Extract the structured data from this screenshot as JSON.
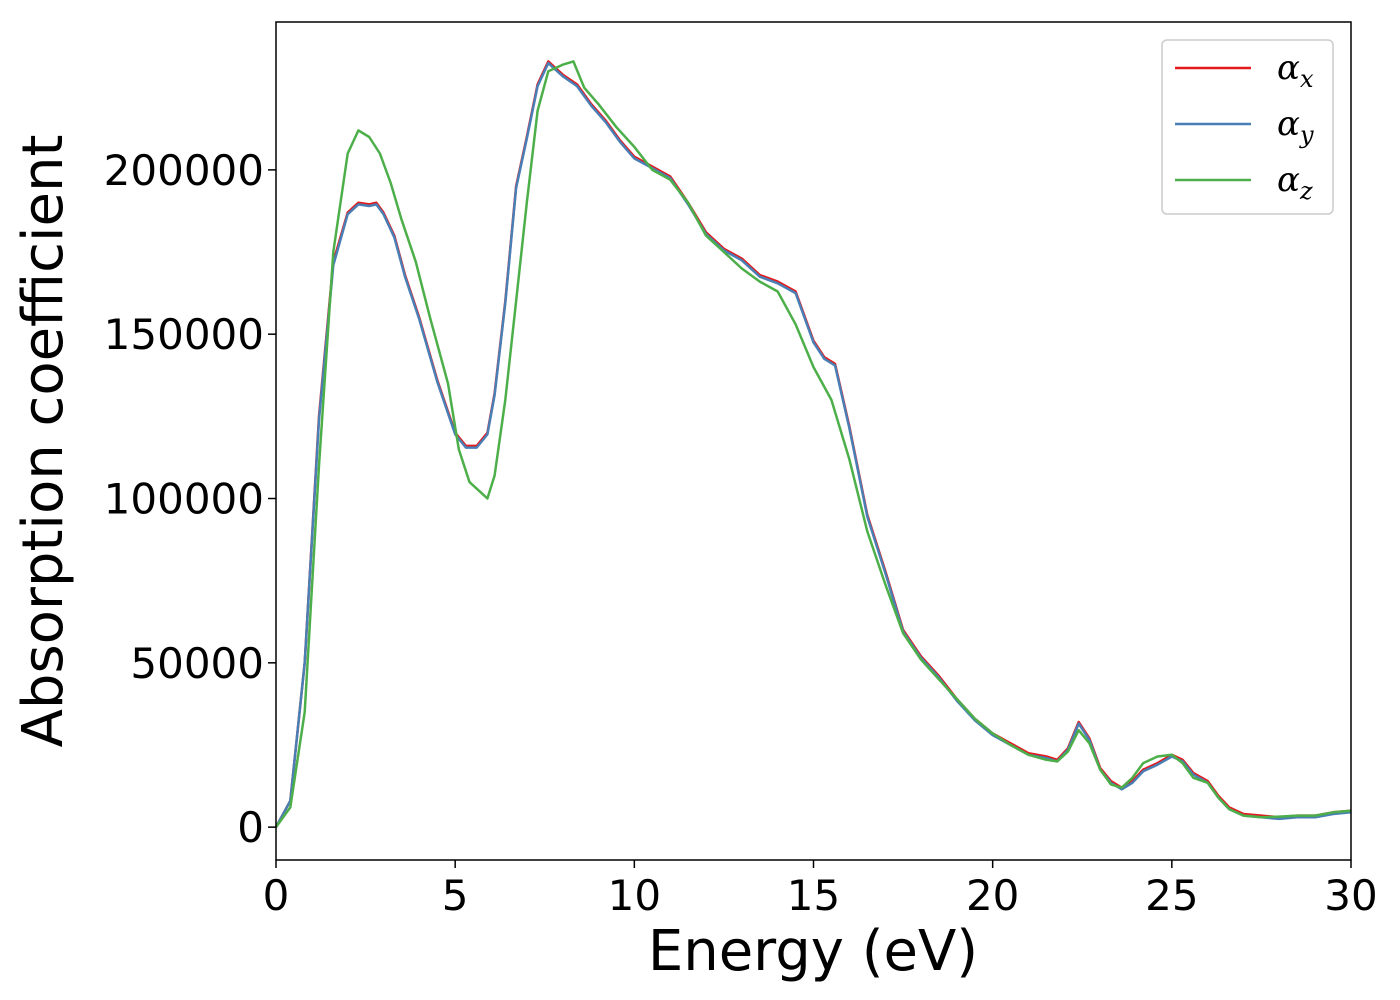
{
  "chart_data": {
    "type": "line",
    "title": "",
    "xlabel": "Energy (eV)",
    "ylabel": "Absorption coefficient",
    "xlim": [
      0,
      30
    ],
    "ylim": [
      -10000,
      245000
    ],
    "xticks": [
      0,
      5,
      10,
      15,
      20,
      25,
      30
    ],
    "yticks": [
      0,
      50000,
      100000,
      150000,
      200000
    ],
    "xtick_labels": [
      "0",
      "5",
      "10",
      "15",
      "20",
      "25",
      "30"
    ],
    "ytick_labels": [
      "0",
      "50000",
      "100000",
      "150000",
      "200000"
    ],
    "grid": false,
    "legend_position": "top-right",
    "series": [
      {
        "name": "α",
        "subscript": "x",
        "color": "#e41a1c",
        "x": [
          0,
          0.4,
          0.8,
          1.2,
          1.6,
          2.0,
          2.3,
          2.6,
          2.8,
          3.0,
          3.3,
          3.6,
          4.0,
          4.5,
          5.0,
          5.3,
          5.6,
          5.9,
          6.1,
          6.4,
          6.7,
          7.0,
          7.3,
          7.6,
          7.8,
          8.0,
          8.4,
          8.8,
          9.2,
          9.6,
          10.0,
          10.5,
          11.0,
          11.5,
          12.0,
          12.5,
          13.0,
          13.5,
          14.0,
          14.5,
          15.0,
          15.3,
          15.6,
          16.0,
          16.5,
          17.0,
          17.5,
          18.0,
          18.5,
          19.0,
          19.5,
          20.0,
          20.5,
          21.0,
          21.5,
          21.8,
          22.1,
          22.4,
          22.7,
          23.0,
          23.3,
          23.6,
          23.9,
          24.2,
          24.6,
          25.0,
          25.3,
          25.6,
          26.0,
          26.3,
          26.6,
          27.0,
          27.5,
          28.0,
          28.5,
          29.0,
          29.5,
          30.0
        ],
        "values": [
          0,
          8000,
          50000,
          125000,
          172000,
          187000,
          190000,
          189500,
          190000,
          187000,
          180000,
          168000,
          155000,
          136000,
          120000,
          116000,
          116000,
          120000,
          132000,
          160000,
          195000,
          210000,
          226000,
          233000,
          231000,
          229000,
          226000,
          220000,
          215000,
          209000,
          204000,
          201000,
          198000,
          190000,
          181000,
          176000,
          173000,
          168000,
          166000,
          163000,
          148000,
          143000,
          141000,
          122000,
          95000,
          78000,
          60000,
          52000,
          46000,
          39000,
          33000,
          28500,
          25500,
          22500,
          21500,
          20500,
          24000,
          32000,
          27000,
          18000,
          14000,
          12000,
          14000,
          17500,
          19500,
          22000,
          20500,
          16500,
          14000,
          9500,
          6000,
          4000,
          3500,
          3000,
          3500,
          3500,
          4500,
          5000
        ]
      },
      {
        "name": "α",
        "subscript": "y",
        "color": "#4a7fb5",
        "x": [
          0,
          0.4,
          0.8,
          1.2,
          1.6,
          2.0,
          2.3,
          2.6,
          2.8,
          3.0,
          3.3,
          3.6,
          4.0,
          4.5,
          5.0,
          5.3,
          5.6,
          5.9,
          6.1,
          6.4,
          6.7,
          7.0,
          7.3,
          7.6,
          7.8,
          8.0,
          8.4,
          8.8,
          9.2,
          9.6,
          10.0,
          10.5,
          11.0,
          11.5,
          12.0,
          12.5,
          13.0,
          13.5,
          14.0,
          14.5,
          15.0,
          15.3,
          15.6,
          16.0,
          16.5,
          17.0,
          17.5,
          18.0,
          18.5,
          19.0,
          19.5,
          20.0,
          20.5,
          21.0,
          21.5,
          21.8,
          22.1,
          22.4,
          22.7,
          23.0,
          23.3,
          23.6,
          23.9,
          24.2,
          24.6,
          25.0,
          25.3,
          25.6,
          26.0,
          26.3,
          26.6,
          27.0,
          27.5,
          28.0,
          28.5,
          29.0,
          29.5,
          30.0
        ],
        "values": [
          0,
          8000,
          50000,
          124000,
          171000,
          186500,
          189500,
          189000,
          189500,
          186500,
          179500,
          167500,
          154500,
          135500,
          119500,
          115500,
          115500,
          119500,
          131500,
          159500,
          194500,
          209500,
          225500,
          232500,
          230500,
          228500,
          225500,
          219500,
          214500,
          208500,
          203500,
          200500,
          197500,
          189500,
          180500,
          175500,
          172500,
          167500,
          165500,
          162500,
          147500,
          142500,
          140500,
          121500,
          94500,
          77500,
          59500,
          51500,
          45500,
          38500,
          32500,
          28000,
          25000,
          22000,
          21000,
          20000,
          23500,
          31500,
          26500,
          17500,
          13500,
          11500,
          13500,
          17000,
          19000,
          21500,
          20000,
          16000,
          13500,
          9000,
          5500,
          3500,
          3000,
          2500,
          3000,
          3000,
          4000,
          4500
        ]
      },
      {
        "name": "α",
        "subscript": "z",
        "color": "#4daf4a",
        "x": [
          0,
          0.4,
          0.8,
          1.2,
          1.6,
          2.0,
          2.3,
          2.6,
          2.9,
          3.2,
          3.5,
          3.9,
          4.3,
          4.8,
          5.1,
          5.4,
          5.7,
          5.9,
          6.1,
          6.4,
          6.7,
          7.0,
          7.3,
          7.6,
          8.0,
          8.3,
          8.6,
          9.0,
          9.5,
          10.0,
          10.5,
          11.0,
          11.5,
          12.0,
          12.5,
          13.0,
          13.5,
          14.0,
          14.5,
          15.0,
          15.5,
          16.0,
          16.5,
          17.0,
          17.5,
          18.0,
          18.5,
          19.0,
          19.5,
          20.0,
          20.5,
          21.0,
          21.5,
          21.8,
          22.1,
          22.4,
          22.7,
          23.0,
          23.3,
          23.6,
          23.9,
          24.2,
          24.6,
          25.0,
          25.3,
          25.6,
          26.0,
          26.3,
          26.6,
          27.0,
          27.5,
          28.0,
          28.5,
          29.0,
          29.5,
          30.0
        ],
        "values": [
          0,
          6000,
          35000,
          110000,
          175000,
          205000,
          212000,
          210000,
          205000,
          196000,
          185000,
          172000,
          155000,
          135000,
          115000,
          105000,
          102000,
          100000,
          107000,
          130000,
          160000,
          190000,
          218000,
          230000,
          232000,
          233000,
          225000,
          220000,
          213000,
          207000,
          200000,
          197000,
          190000,
          180000,
          175000,
          170000,
          166000,
          163000,
          153000,
          140000,
          130000,
          112000,
          90000,
          74000,
          59000,
          51000,
          45000,
          39000,
          33000,
          28500,
          25000,
          22000,
          20500,
          20000,
          23000,
          29500,
          25500,
          17500,
          13000,
          12000,
          15000,
          19500,
          21500,
          22000,
          19500,
          15000,
          13500,
          9000,
          5500,
          3500,
          3000,
          3200,
          3500,
          3500,
          4500,
          5000
        ]
      }
    ]
  }
}
